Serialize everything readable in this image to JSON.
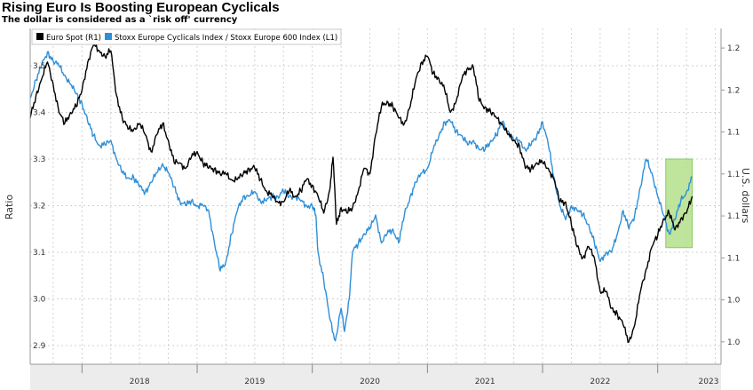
{
  "title": "Rising Euro Is Boosting European Cyclicals",
  "subtitle": "The dollar is considered as a `risk off' currency",
  "chart_data": {
    "type": "line",
    "left_axis": {
      "label": "Ratio",
      "ticks": [
        "2.9",
        "3.0",
        "3.1",
        "3.2",
        "3.3",
        "3.4",
        "3.5"
      ],
      "ylim": [
        2.86,
        3.58
      ]
    },
    "right_axis": {
      "label": "U.S. dollars",
      "ticks": [
        "1.0",
        "1.0",
        "1.1",
        "1.1",
        "1.1",
        "1.1",
        "1.2",
        "1.2"
      ],
      "ylim": [
        0.955,
        1.255
      ]
    },
    "x_ticks": [
      "2018",
      "2019",
      "2020",
      "2021",
      "2022",
      "2023"
    ],
    "xlim": [
      2017.55,
      2023.55
    ],
    "grid": true,
    "legend_position": "top-left",
    "highlight": {
      "x_range": [
        2023.07,
        2023.3
      ],
      "y_range": [
        3.11,
        3.3
      ],
      "color": "#b5e08a"
    },
    "series": [
      {
        "name": "Euro Spot (R1)",
        "axis": "right",
        "color": "#000000",
        "points": [
          [
            2017.55,
            1.175
          ],
          [
            2017.6,
            1.195
          ],
          [
            2017.65,
            1.21
          ],
          [
            2017.7,
            1.225
          ],
          [
            2017.75,
            1.205
          ],
          [
            2017.8,
            1.18
          ],
          [
            2017.85,
            1.17
          ],
          [
            2017.9,
            1.18
          ],
          [
            2017.95,
            1.185
          ],
          [
            2018.0,
            1.2
          ],
          [
            2018.05,
            1.225
          ],
          [
            2018.1,
            1.24
          ],
          [
            2018.15,
            1.235
          ],
          [
            2018.2,
            1.23
          ],
          [
            2018.25,
            1.235
          ],
          [
            2018.3,
            1.195
          ],
          [
            2018.35,
            1.175
          ],
          [
            2018.4,
            1.165
          ],
          [
            2018.45,
            1.165
          ],
          [
            2018.5,
            1.17
          ],
          [
            2018.55,
            1.16
          ],
          [
            2018.6,
            1.145
          ],
          [
            2018.65,
            1.16
          ],
          [
            2018.7,
            1.17
          ],
          [
            2018.75,
            1.155
          ],
          [
            2018.8,
            1.135
          ],
          [
            2018.85,
            1.135
          ],
          [
            2018.9,
            1.13
          ],
          [
            2018.95,
            1.14
          ],
          [
            2019.0,
            1.145
          ],
          [
            2019.05,
            1.135
          ],
          [
            2019.1,
            1.13
          ],
          [
            2019.15,
            1.13
          ],
          [
            2019.2,
            1.125
          ],
          [
            2019.25,
            1.125
          ],
          [
            2019.3,
            1.12
          ],
          [
            2019.35,
            1.12
          ],
          [
            2019.4,
            1.125
          ],
          [
            2019.45,
            1.13
          ],
          [
            2019.5,
            1.13
          ],
          [
            2019.55,
            1.12
          ],
          [
            2019.6,
            1.11
          ],
          [
            2019.65,
            1.105
          ],
          [
            2019.7,
            1.1
          ],
          [
            2019.75,
            1.1
          ],
          [
            2019.8,
            1.11
          ],
          [
            2019.85,
            1.105
          ],
          [
            2019.9,
            1.11
          ],
          [
            2019.95,
            1.12
          ],
          [
            2020.0,
            1.115
          ],
          [
            2020.05,
            1.105
          ],
          [
            2020.1,
            1.09
          ],
          [
            2020.15,
            1.11
          ],
          [
            2020.18,
            1.14
          ],
          [
            2020.21,
            1.08
          ],
          [
            2020.25,
            1.095
          ],
          [
            2020.3,
            1.09
          ],
          [
            2020.35,
            1.095
          ],
          [
            2020.4,
            1.11
          ],
          [
            2020.45,
            1.13
          ],
          [
            2020.5,
            1.125
          ],
          [
            2020.55,
            1.16
          ],
          [
            2020.6,
            1.185
          ],
          [
            2020.65,
            1.19
          ],
          [
            2020.7,
            1.185
          ],
          [
            2020.75,
            1.175
          ],
          [
            2020.8,
            1.17
          ],
          [
            2020.85,
            1.185
          ],
          [
            2020.9,
            1.21
          ],
          [
            2020.95,
            1.225
          ],
          [
            2021.0,
            1.23
          ],
          [
            2021.05,
            1.215
          ],
          [
            2021.1,
            1.21
          ],
          [
            2021.15,
            1.2
          ],
          [
            2021.2,
            1.18
          ],
          [
            2021.25,
            1.19
          ],
          [
            2021.3,
            1.21
          ],
          [
            2021.35,
            1.22
          ],
          [
            2021.4,
            1.22
          ],
          [
            2021.45,
            1.19
          ],
          [
            2021.5,
            1.185
          ],
          [
            2021.55,
            1.18
          ],
          [
            2021.6,
            1.175
          ],
          [
            2021.65,
            1.17
          ],
          [
            2021.7,
            1.16
          ],
          [
            2021.75,
            1.155
          ],
          [
            2021.8,
            1.15
          ],
          [
            2021.85,
            1.13
          ],
          [
            2021.9,
            1.13
          ],
          [
            2021.95,
            1.135
          ],
          [
            2022.0,
            1.135
          ],
          [
            2022.05,
            1.13
          ],
          [
            2022.1,
            1.12
          ],
          [
            2022.15,
            1.1
          ],
          [
            2022.2,
            1.1
          ],
          [
            2022.25,
            1.08
          ],
          [
            2022.3,
            1.06
          ],
          [
            2022.35,
            1.05
          ],
          [
            2022.4,
            1.06
          ],
          [
            2022.45,
            1.05
          ],
          [
            2022.5,
            1.02
          ],
          [
            2022.55,
            1.02
          ],
          [
            2022.6,
            1.005
          ],
          [
            2022.65,
            1.0
          ],
          [
            2022.7,
            0.99
          ],
          [
            2022.75,
            0.975
          ],
          [
            2022.8,
            0.99
          ],
          [
            2022.85,
            1.02
          ],
          [
            2022.9,
            1.04
          ],
          [
            2022.95,
            1.06
          ],
          [
            2023.0,
            1.07
          ],
          [
            2023.05,
            1.085
          ],
          [
            2023.1,
            1.09
          ],
          [
            2023.15,
            1.075
          ],
          [
            2023.2,
            1.085
          ],
          [
            2023.25,
            1.09
          ],
          [
            2023.3,
            1.105
          ]
        ]
      },
      {
        "name": "Stoxx Europe Cyclicals Index / Stoxx Europe 600 Index (L1)",
        "axis": "left",
        "color": "#2e8fd8",
        "points": [
          [
            2017.55,
            3.43
          ],
          [
            2017.6,
            3.47
          ],
          [
            2017.65,
            3.5
          ],
          [
            2017.7,
            3.53
          ],
          [
            2017.75,
            3.51
          ],
          [
            2017.8,
            3.5
          ],
          [
            2017.85,
            3.48
          ],
          [
            2017.9,
            3.46
          ],
          [
            2017.95,
            3.44
          ],
          [
            2018.0,
            3.42
          ],
          [
            2018.05,
            3.38
          ],
          [
            2018.1,
            3.35
          ],
          [
            2018.15,
            3.33
          ],
          [
            2018.2,
            3.33
          ],
          [
            2018.25,
            3.34
          ],
          [
            2018.3,
            3.3
          ],
          [
            2018.35,
            3.27
          ],
          [
            2018.4,
            3.26
          ],
          [
            2018.45,
            3.26
          ],
          [
            2018.5,
            3.24
          ],
          [
            2018.55,
            3.23
          ],
          [
            2018.6,
            3.25
          ],
          [
            2018.65,
            3.27
          ],
          [
            2018.7,
            3.29
          ],
          [
            2018.75,
            3.27
          ],
          [
            2018.8,
            3.24
          ],
          [
            2018.85,
            3.21
          ],
          [
            2018.9,
            3.2
          ],
          [
            2018.95,
            3.21
          ],
          [
            2019.0,
            3.2
          ],
          [
            2019.05,
            3.2
          ],
          [
            2019.1,
            3.19
          ],
          [
            2019.15,
            3.12
          ],
          [
            2019.2,
            3.06
          ],
          [
            2019.25,
            3.08
          ],
          [
            2019.3,
            3.14
          ],
          [
            2019.35,
            3.19
          ],
          [
            2019.4,
            3.22
          ],
          [
            2019.45,
            3.22
          ],
          [
            2019.5,
            3.23
          ],
          [
            2019.55,
            3.21
          ],
          [
            2019.6,
            3.21
          ],
          [
            2019.65,
            3.22
          ],
          [
            2019.7,
            3.22
          ],
          [
            2019.75,
            3.23
          ],
          [
            2019.8,
            3.22
          ],
          [
            2019.85,
            3.22
          ],
          [
            2019.9,
            3.21
          ],
          [
            2019.95,
            3.2
          ],
          [
            2020.0,
            3.2
          ],
          [
            2020.03,
            3.18
          ],
          [
            2020.05,
            3.1
          ],
          [
            2020.1,
            3.04
          ],
          [
            2020.15,
            2.96
          ],
          [
            2020.2,
            2.91
          ],
          [
            2020.25,
            2.98
          ],
          [
            2020.28,
            2.93
          ],
          [
            2020.32,
            3.0
          ],
          [
            2020.35,
            3.1
          ],
          [
            2020.4,
            3.12
          ],
          [
            2020.45,
            3.14
          ],
          [
            2020.5,
            3.15
          ],
          [
            2020.55,
            3.18
          ],
          [
            2020.6,
            3.12
          ],
          [
            2020.65,
            3.14
          ],
          [
            2020.7,
            3.15
          ],
          [
            2020.75,
            3.12
          ],
          [
            2020.8,
            3.18
          ],
          [
            2020.85,
            3.22
          ],
          [
            2020.9,
            3.25
          ],
          [
            2020.95,
            3.27
          ],
          [
            2021.0,
            3.28
          ],
          [
            2021.05,
            3.32
          ],
          [
            2021.1,
            3.35
          ],
          [
            2021.15,
            3.38
          ],
          [
            2021.2,
            3.38
          ],
          [
            2021.25,
            3.36
          ],
          [
            2021.3,
            3.35
          ],
          [
            2021.35,
            3.33
          ],
          [
            2021.4,
            3.34
          ],
          [
            2021.45,
            3.32
          ],
          [
            2021.5,
            3.32
          ],
          [
            2021.55,
            3.34
          ],
          [
            2021.6,
            3.35
          ],
          [
            2021.65,
            3.38
          ],
          [
            2021.7,
            3.36
          ],
          [
            2021.75,
            3.34
          ],
          [
            2021.8,
            3.34
          ],
          [
            2021.85,
            3.32
          ],
          [
            2021.9,
            3.33
          ],
          [
            2021.95,
            3.35
          ],
          [
            2022.0,
            3.38
          ],
          [
            2022.05,
            3.33
          ],
          [
            2022.1,
            3.26
          ],
          [
            2022.15,
            3.2
          ],
          [
            2022.2,
            3.17
          ],
          [
            2022.25,
            3.2
          ],
          [
            2022.3,
            3.19
          ],
          [
            2022.35,
            3.18
          ],
          [
            2022.4,
            3.16
          ],
          [
            2022.45,
            3.12
          ],
          [
            2022.5,
            3.08
          ],
          [
            2022.55,
            3.1
          ],
          [
            2022.6,
            3.1
          ],
          [
            2022.65,
            3.14
          ],
          [
            2022.7,
            3.19
          ],
          [
            2022.75,
            3.15
          ],
          [
            2022.8,
            3.18
          ],
          [
            2022.85,
            3.24
          ],
          [
            2022.9,
            3.3
          ],
          [
            2022.95,
            3.27
          ],
          [
            2023.0,
            3.22
          ],
          [
            2023.05,
            3.18
          ],
          [
            2023.1,
            3.14
          ],
          [
            2023.15,
            3.17
          ],
          [
            2023.2,
            3.21
          ],
          [
            2023.25,
            3.23
          ],
          [
            2023.3,
            3.26
          ]
        ]
      }
    ]
  }
}
